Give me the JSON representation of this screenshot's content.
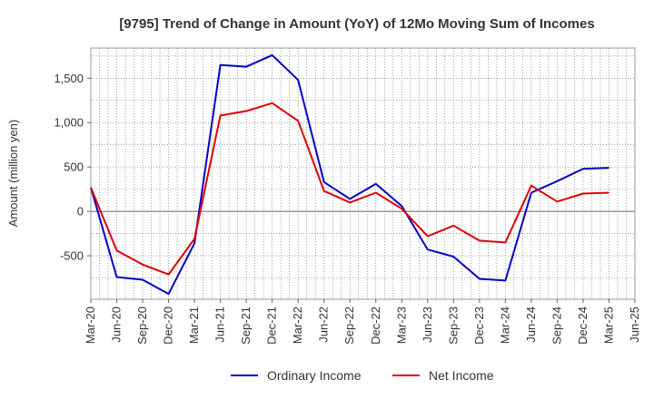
{
  "chart_data": {
    "type": "line",
    "title": "[9795]  Trend of Change in Amount (YoY) of 12Mo Moving Sum of Incomes",
    "xlabel": "",
    "ylabel": "Amount (million yen)",
    "x_ticks": [
      "Mar-20",
      "Jun-20",
      "Sep-20",
      "Dec-20",
      "Mar-21",
      "Jun-21",
      "Sep-21",
      "Dec-21",
      "Mar-22",
      "Jun-22",
      "Sep-22",
      "Dec-22",
      "Mar-23",
      "Jun-23",
      "Sep-23",
      "Dec-23",
      "Mar-24",
      "Jun-24",
      "Sep-24",
      "Dec-24",
      "Mar-25",
      "Jun-25"
    ],
    "y_ticks": [
      -500,
      0,
      500,
      1000,
      1500
    ],
    "y_tick_labels": [
      "-500",
      "0",
      "500",
      "1,000",
      "1,500"
    ],
    "ylim": [
      -990,
      1840
    ],
    "grid": true,
    "legend_position": "bottom",
    "series": [
      {
        "name": "Ordinary Income",
        "color": "#0000cc",
        "values": [
          270,
          -740,
          -770,
          -930,
          -360,
          1650,
          1630,
          1760,
          1480,
          330,
          140,
          310,
          60,
          -430,
          -510,
          -760,
          -780,
          210,
          340,
          480,
          490
        ]
      },
      {
        "name": "Net Income",
        "color": "#dd0000",
        "values": [
          270,
          -440,
          -600,
          -710,
          -310,
          1080,
          1130,
          1220,
          1020,
          230,
          100,
          210,
          30,
          -280,
          -160,
          -330,
          -350,
          290,
          110,
          200,
          210
        ]
      }
    ]
  }
}
